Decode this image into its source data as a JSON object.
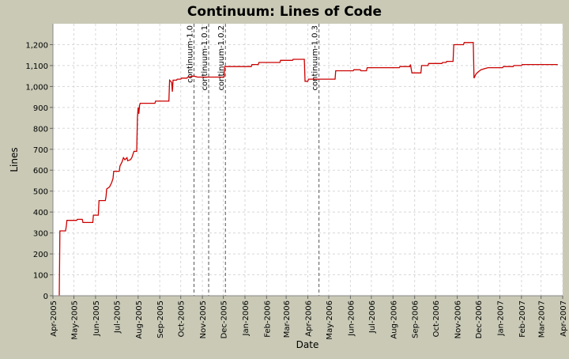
{
  "colors": {
    "background": "#c9c9b6",
    "plot_background": "#ffffff",
    "grid": "#d8d8d8",
    "series": "#cc0000",
    "marker": "#555555",
    "text": "#000000"
  },
  "chart_data": {
    "type": "line",
    "title": "Continuum:  Lines of Code",
    "xlabel": "Date",
    "ylabel": "Lines",
    "ylim": [
      0,
      1300
    ],
    "xlim": [
      "2005-04-01",
      "2007-04-01"
    ],
    "grid": true,
    "yticks": [
      0,
      100,
      200,
      300,
      400,
      500,
      600,
      700,
      800,
      900,
      1000,
      1100,
      1200
    ],
    "ytick_labels": [
      "0",
      "100",
      "200",
      "300",
      "400",
      "500",
      "600",
      "700",
      "800",
      "900",
      "1,000",
      "1,100",
      "1,200"
    ],
    "xticks": [
      {
        "date": "2005-04-01",
        "label": "Apr-2005"
      },
      {
        "date": "2005-05-01",
        "label": "May-2005"
      },
      {
        "date": "2005-06-01",
        "label": "Jun-2005"
      },
      {
        "date": "2005-07-01",
        "label": "Jul-2005"
      },
      {
        "date": "2005-08-01",
        "label": "Aug-2005"
      },
      {
        "date": "2005-09-01",
        "label": "Sep-2005"
      },
      {
        "date": "2005-10-01",
        "label": "Oct-2005"
      },
      {
        "date": "2005-11-01",
        "label": "Nov-2005"
      },
      {
        "date": "2005-12-01",
        "label": "Dec-2005"
      },
      {
        "date": "2006-01-01",
        "label": "Jan-2006"
      },
      {
        "date": "2006-02-01",
        "label": "Feb-2006"
      },
      {
        "date": "2006-03-01",
        "label": "Mar-2006"
      },
      {
        "date": "2006-04-01",
        "label": "Apr-2006"
      },
      {
        "date": "2006-05-01",
        "label": "May-2006"
      },
      {
        "date": "2006-06-01",
        "label": "Jun-2006"
      },
      {
        "date": "2006-07-01",
        "label": "Jul-2006"
      },
      {
        "date": "2006-08-01",
        "label": "Aug-2006"
      },
      {
        "date": "2006-09-01",
        "label": "Sep-2006"
      },
      {
        "date": "2006-10-01",
        "label": "Oct-2006"
      },
      {
        "date": "2006-11-01",
        "label": "Nov-2006"
      },
      {
        "date": "2006-12-01",
        "label": "Dec-2006"
      },
      {
        "date": "2007-01-01",
        "label": "Jan-2007"
      },
      {
        "date": "2007-02-01",
        "label": "Feb-2007"
      },
      {
        "date": "2007-03-01",
        "label": "Mar-2007"
      },
      {
        "date": "2007-04-01",
        "label": "Apr-2007"
      }
    ],
    "markers": [
      {
        "label": "continuum-1.0",
        "date": "2005-10-20"
      },
      {
        "label": "continuum-1.0.1",
        "date": "2005-11-10"
      },
      {
        "label": "continuum-1.0.2",
        "date": "2005-12-04"
      },
      {
        "label": "continuum-1.0.3",
        "date": "2006-04-17"
      }
    ],
    "series": [
      {
        "points": [
          [
            "2005-04-10",
            0
          ],
          [
            "2005-04-11",
            310
          ],
          [
            "2005-04-19",
            310
          ],
          [
            "2005-04-20",
            330
          ],
          [
            "2005-04-21",
            360
          ],
          [
            "2005-05-05",
            360
          ],
          [
            "2005-05-06",
            365
          ],
          [
            "2005-05-13",
            365
          ],
          [
            "2005-05-14",
            350
          ],
          [
            "2005-05-28",
            350
          ],
          [
            "2005-05-29",
            385
          ],
          [
            "2005-06-05",
            385
          ],
          [
            "2005-06-06",
            455
          ],
          [
            "2005-06-15",
            455
          ],
          [
            "2005-06-16",
            475
          ],
          [
            "2005-06-17",
            510
          ],
          [
            "2005-06-21",
            520
          ],
          [
            "2005-06-24",
            540
          ],
          [
            "2005-06-26",
            560
          ],
          [
            "2005-06-27",
            595
          ],
          [
            "2005-07-05",
            595
          ],
          [
            "2005-07-06",
            620
          ],
          [
            "2005-07-09",
            640
          ],
          [
            "2005-07-11",
            660
          ],
          [
            "2005-07-13",
            650
          ],
          [
            "2005-07-16",
            660
          ],
          [
            "2005-07-17",
            645
          ],
          [
            "2005-07-21",
            650
          ],
          [
            "2005-07-23",
            660
          ],
          [
            "2005-07-26",
            690
          ],
          [
            "2005-07-30",
            690
          ],
          [
            "2005-07-31",
            850
          ],
          [
            "2005-08-01",
            900
          ],
          [
            "2005-08-02",
            870
          ],
          [
            "2005-08-03",
            910
          ],
          [
            "2005-08-04",
            920
          ],
          [
            "2005-08-25",
            920
          ],
          [
            "2005-08-26",
            930
          ],
          [
            "2005-09-14",
            930
          ],
          [
            "2005-09-15",
            1030
          ],
          [
            "2005-09-18",
            1020
          ],
          [
            "2005-09-19",
            975
          ],
          [
            "2005-09-20",
            1030
          ],
          [
            "2005-09-25",
            1030
          ],
          [
            "2005-09-26",
            1035
          ],
          [
            "2005-10-01",
            1035
          ],
          [
            "2005-10-02",
            1040
          ],
          [
            "2005-10-10",
            1040
          ],
          [
            "2005-10-11",
            1045
          ],
          [
            "2005-10-20",
            1050
          ],
          [
            "2005-10-25",
            1045
          ],
          [
            "2005-11-10",
            1045
          ],
          [
            "2005-12-02",
            1045
          ],
          [
            "2005-12-03",
            1095
          ],
          [
            "2006-01-10",
            1095
          ],
          [
            "2006-01-11",
            1105
          ],
          [
            "2006-01-20",
            1105
          ],
          [
            "2006-01-21",
            1115
          ],
          [
            "2006-02-20",
            1115
          ],
          [
            "2006-02-21",
            1125
          ],
          [
            "2006-03-10",
            1125
          ],
          [
            "2006-03-11",
            1130
          ],
          [
            "2006-03-27",
            1130
          ],
          [
            "2006-03-28",
            1025
          ],
          [
            "2006-04-01",
            1025
          ],
          [
            "2006-04-02",
            1035
          ],
          [
            "2006-05-10",
            1035
          ],
          [
            "2006-05-11",
            1075
          ],
          [
            "2006-06-05",
            1075
          ],
          [
            "2006-06-06",
            1080
          ],
          [
            "2006-06-15",
            1080
          ],
          [
            "2006-06-16",
            1075
          ],
          [
            "2006-06-24",
            1075
          ],
          [
            "2006-06-25",
            1090
          ],
          [
            "2006-08-10",
            1090
          ],
          [
            "2006-08-11",
            1095
          ],
          [
            "2006-08-25",
            1095
          ],
          [
            "2006-08-26",
            1105
          ],
          [
            "2006-08-28",
            1065
          ],
          [
            "2006-09-10",
            1065
          ],
          [
            "2006-09-11",
            1100
          ],
          [
            "2006-09-20",
            1100
          ],
          [
            "2006-09-21",
            1110
          ],
          [
            "2006-10-10",
            1110
          ],
          [
            "2006-10-11",
            1115
          ],
          [
            "2006-10-16",
            1115
          ],
          [
            "2006-10-17",
            1120
          ],
          [
            "2006-10-26",
            1120
          ],
          [
            "2006-10-27",
            1200
          ],
          [
            "2006-11-10",
            1200
          ],
          [
            "2006-11-11",
            1210
          ],
          [
            "2006-11-24",
            1210
          ],
          [
            "2006-11-25",
            1040
          ],
          [
            "2006-11-28",
            1060
          ],
          [
            "2006-12-01",
            1070
          ],
          [
            "2006-12-05",
            1080
          ],
          [
            "2006-12-10",
            1085
          ],
          [
            "2006-12-15",
            1090
          ],
          [
            "2007-01-05",
            1090
          ],
          [
            "2007-01-06",
            1095
          ],
          [
            "2007-01-20",
            1095
          ],
          [
            "2007-01-21",
            1100
          ],
          [
            "2007-02-01",
            1100
          ],
          [
            "2007-02-02",
            1105
          ],
          [
            "2007-03-25",
            1105
          ]
        ]
      }
    ]
  }
}
